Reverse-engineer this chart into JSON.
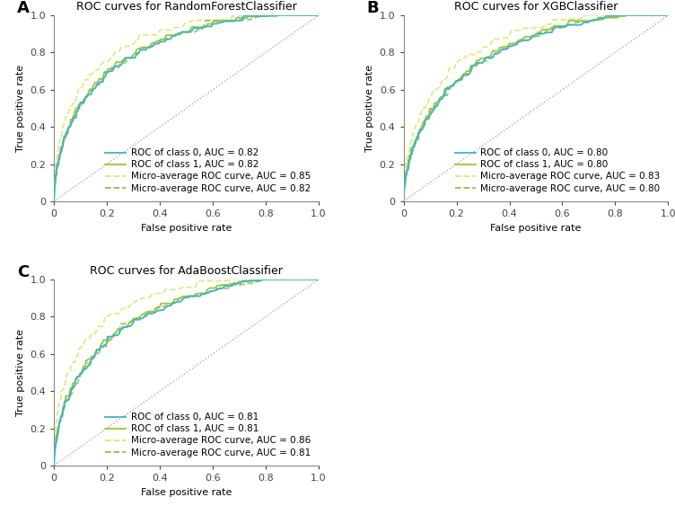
{
  "subplots": [
    {
      "label": "A",
      "title": "ROC curves for RandomForestClassifier",
      "class0_auc": 0.82,
      "class1_auc": 0.82,
      "micro1_auc": 0.85,
      "micro2_auc": 0.82
    },
    {
      "label": "B",
      "title": "ROC curves for XGBClassifier",
      "class0_auc": 0.8,
      "class1_auc": 0.8,
      "micro1_auc": 0.83,
      "micro2_auc": 0.8
    },
    {
      "label": "C",
      "title": "ROC curves for AdaBoostClassifier",
      "class0_auc": 0.81,
      "class1_auc": 0.81,
      "micro1_auc": 0.86,
      "micro2_auc": 0.81
    }
  ],
  "color_class0": "#41b3c8",
  "color_class1": "#9ec43a",
  "color_micro1": "#d6e87a",
  "color_micro2": "#8bbf5a",
  "xlabel": "False positive rate",
  "ylabel": "True positive rate",
  "xlim": [
    0,
    1.0
  ],
  "ylim": [
    0,
    1.0
  ],
  "xticks": [
    0,
    0.2,
    0.4,
    0.6,
    0.8,
    1.0
  ],
  "yticks": [
    0,
    0.2,
    0.4,
    0.6,
    0.8,
    1.0
  ],
  "legend_loc": "lower right",
  "background_color": "#ffffff",
  "line_width": 1.3,
  "fontsize_title": 9,
  "fontsize_label": 8,
  "fontsize_tick": 8,
  "fontsize_legend": 7.5,
  "fontsize_panel_label": 13
}
